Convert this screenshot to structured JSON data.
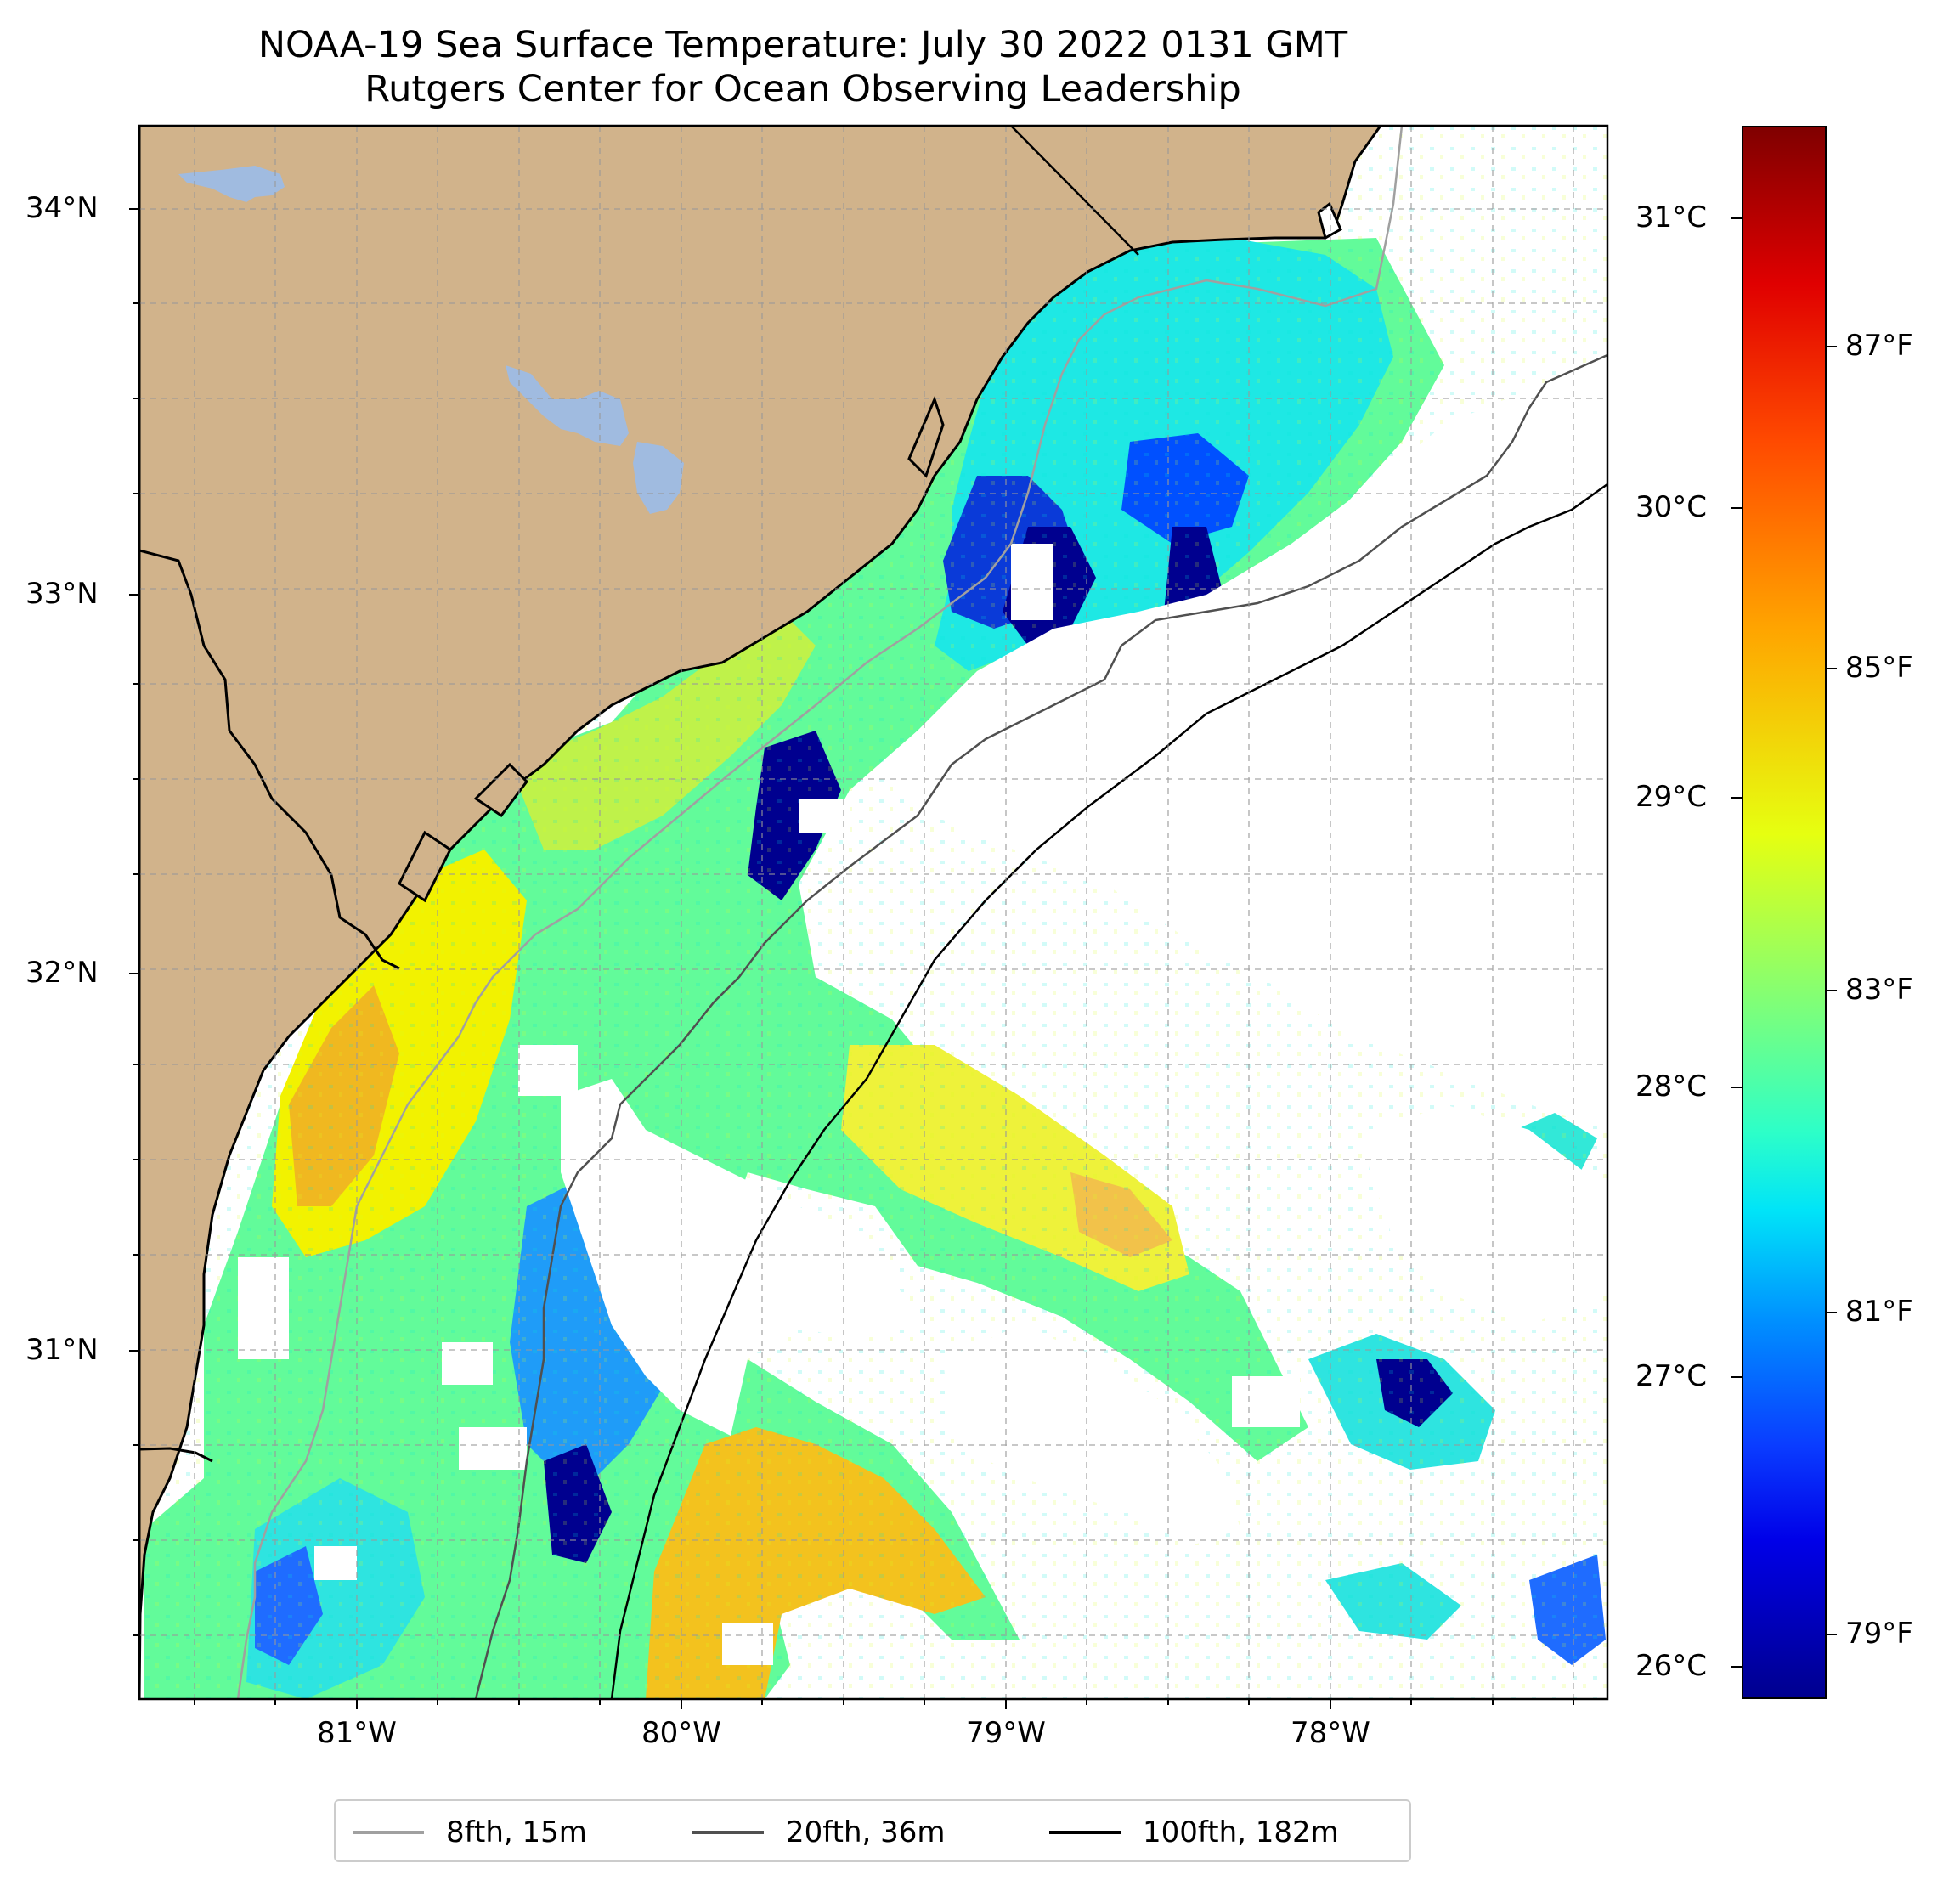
{
  "title": "NOAA-19 Sea Surface Temperature: July 30 2022 0131 GMT",
  "subtitle": "Rutgers Center for Ocean Observing Leadership",
  "map": {
    "latitude_labels": [
      "34°N",
      "33°N",
      "32°N",
      "31°N"
    ],
    "longitude_labels": [
      "81°W",
      "80°W",
      "79°W",
      "78°W"
    ],
    "land_color": "#d1b38b",
    "water_body_color": "#a0bbe0",
    "gridlines": true
  },
  "colorbar": {
    "celsius_labels": [
      "31°C",
      "30°C",
      "29°C",
      "28°C",
      "27°C",
      "26°C"
    ],
    "fahrenheit_labels": [
      "87°F",
      "85°F",
      "83°F",
      "81°F",
      "79°F"
    ],
    "colormap": "jet"
  },
  "legend": {
    "items": [
      {
        "label": "8fth, 15m",
        "color": "#a0a0a0"
      },
      {
        "label": "20fth, 36m",
        "color": "#505050"
      },
      {
        "label": "100fth, 182m",
        "color": "#000000"
      }
    ]
  }
}
